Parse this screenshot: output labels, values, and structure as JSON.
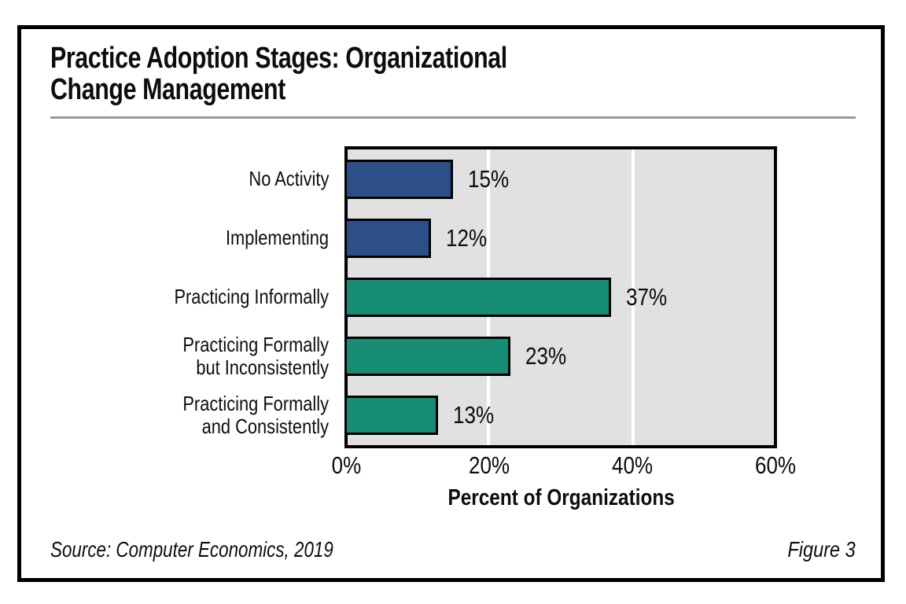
{
  "figure": {
    "title_line1": "Practice Adoption Stages: Organizational",
    "title_line2": "Change Management",
    "source": "Source: Computer Economics, 2019",
    "figure_label": "Figure 3"
  },
  "colors": {
    "blue_bar": "#2D4F87",
    "teal_bar": "#168C75",
    "plot_background": "#E1E1E1",
    "gridline": "#FFFFFF",
    "border": "#000000",
    "divider": "#999999"
  },
  "chart_data": {
    "type": "bar",
    "orientation": "horizontal",
    "title": "Practice Adoption Stages: Organizational Change Management",
    "categories": [
      "No Activity",
      "Implementing",
      "Practicing Informally",
      "Practicing Formally but Inconsistently",
      "Practicing Formally and Consistently"
    ],
    "categories_display": [
      "No Activity",
      "Implementing",
      "Practicing Informally",
      "Practicing Formally\nbut Inconsistently",
      "Practicing Formally\nand Consistently"
    ],
    "values": [
      15,
      12,
      37,
      23,
      13
    ],
    "value_labels": [
      "15%",
      "12%",
      "37%",
      "23%",
      "13%"
    ],
    "bar_colors": [
      "#2D4F87",
      "#2D4F87",
      "#168C75",
      "#168C75",
      "#168C75"
    ],
    "xlabel": "Percent of Organizations",
    "xlim": [
      0,
      60
    ],
    "xticks": [
      0,
      20,
      40,
      60
    ],
    "xtick_labels": [
      "0%",
      "20%",
      "40%",
      "60%"
    ],
    "grid": true,
    "legend": "none"
  }
}
